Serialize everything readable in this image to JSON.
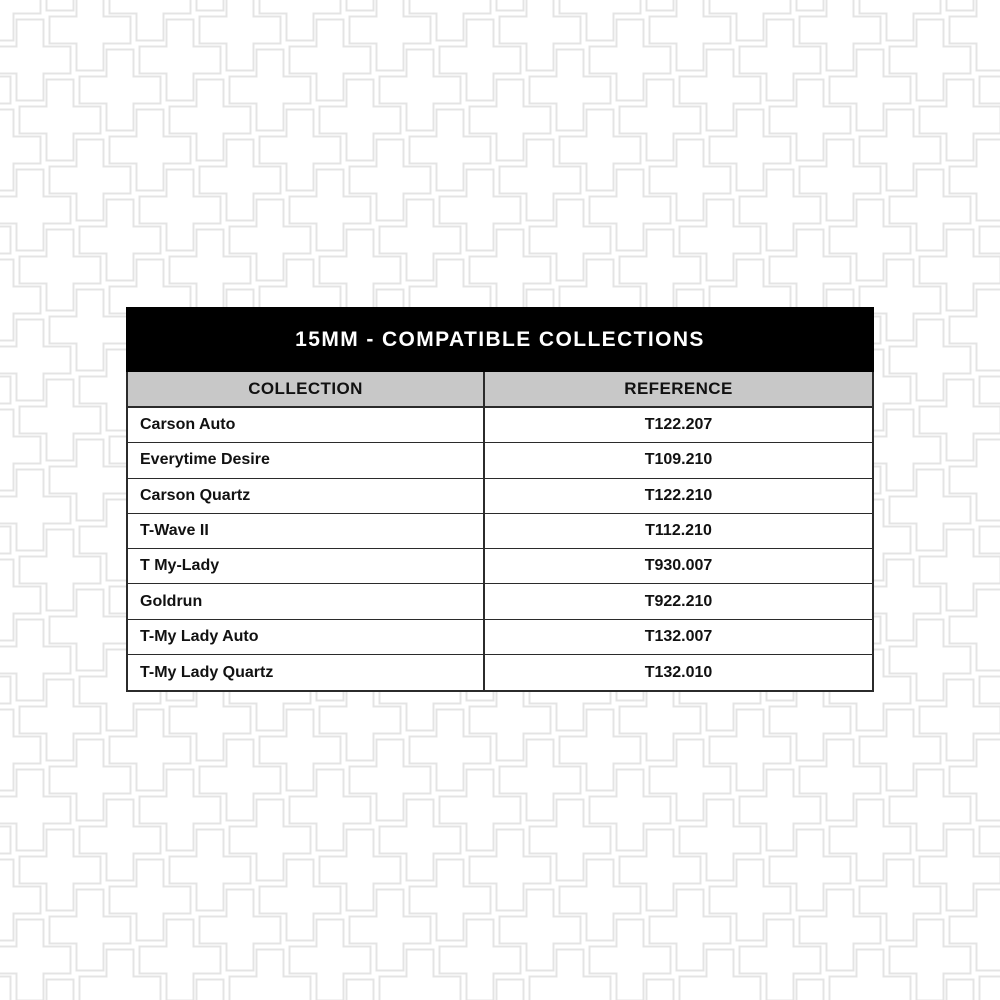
{
  "table": {
    "title": "15MM - COMPATIBLE COLLECTIONS",
    "columns": [
      "COLLECTION",
      "REFERENCE"
    ],
    "rows": [
      {
        "collection": "Carson Auto",
        "reference": "T122.207"
      },
      {
        "collection": "Everytime Desire",
        "reference": "T109.210"
      },
      {
        "collection": "Carson Quartz",
        "reference": "T122.210"
      },
      {
        "collection": "T-Wave II",
        "reference": "T112.210"
      },
      {
        "collection": "T My-Lady",
        "reference": "T930.007"
      },
      {
        "collection": "Goldrun",
        "reference": "T922.210"
      },
      {
        "collection": "T-My Lady Auto",
        "reference": "T132.007"
      },
      {
        "collection": "T-My Lady Quartz",
        "reference": "T132.010"
      }
    ]
  },
  "theme": {
    "page_bg": "#ffffff",
    "title_bg": "#000000",
    "title_text": "#ffffff",
    "column_header_bg": "#c8c8c8",
    "border_color": "#2b2b2b",
    "row_text": "#111111",
    "pattern_stroke": "#e4e4e4"
  }
}
